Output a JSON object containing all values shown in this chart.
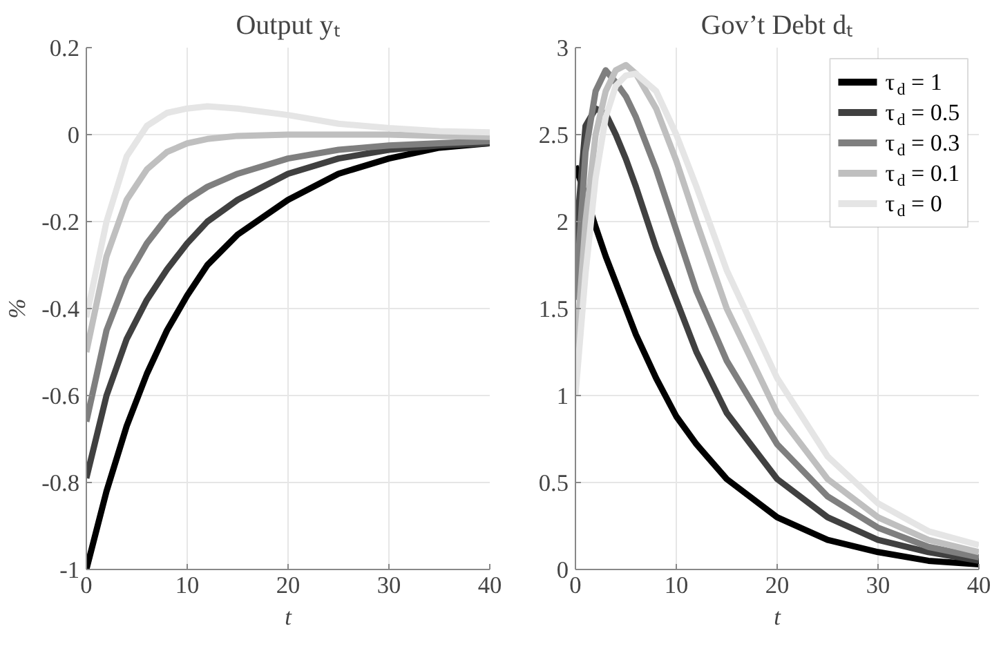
{
  "chart_data": [
    {
      "type": "line",
      "title": "Output yₜ",
      "xlabel": "t",
      "ylabel": "%",
      "xlim": [
        0,
        40
      ],
      "xticks": [
        0,
        10,
        20,
        30,
        40
      ],
      "ylim": [
        -1,
        0.2
      ],
      "yticks": [
        -1,
        -0.8,
        -0.6,
        -0.4,
        -0.2,
        0,
        0.2
      ],
      "grid": true,
      "x": [
        0,
        2,
        4,
        6,
        8,
        10,
        12,
        15,
        20,
        25,
        30,
        35,
        40
      ],
      "series": [
        {
          "color": "#000000",
          "values": [
            -1,
            -0.82,
            -0.67,
            -0.55,
            -0.45,
            -0.37,
            -0.3,
            -0.23,
            -0.15,
            -0.09,
            -0.055,
            -0.03,
            -0.02
          ]
        },
        {
          "color": "#404040",
          "values": [
            -0.79,
            -0.6,
            -0.47,
            -0.38,
            -0.31,
            -0.25,
            -0.2,
            -0.15,
            -0.09,
            -0.055,
            -0.035,
            -0.025,
            -0.02
          ]
        },
        {
          "color": "#7f7f7f",
          "values": [
            -0.66,
            -0.45,
            -0.33,
            -0.25,
            -0.19,
            -0.15,
            -0.12,
            -0.09,
            -0.055,
            -0.035,
            -0.025,
            -0.02,
            -0.015
          ]
        },
        {
          "color": "#bfbfbf",
          "values": [
            -0.5,
            -0.28,
            -0.15,
            -0.08,
            -0.04,
            -0.02,
            -0.01,
            -0.003,
            0,
            0,
            0,
            -0.003,
            -0.005
          ]
        },
        {
          "color": "#e5e5e5",
          "values": [
            -0.42,
            -0.2,
            -0.05,
            0.02,
            0.05,
            0.06,
            0.065,
            0.06,
            0.045,
            0.025,
            0.015,
            0.008,
            0.005
          ]
        }
      ]
    },
    {
      "type": "line",
      "title": "Gov’t Debt dₜ",
      "xlabel": "t",
      "xlim": [
        0,
        40
      ],
      "xticks": [
        0,
        10,
        20,
        30,
        40
      ],
      "ylim": [
        0,
        3
      ],
      "yticks": [
        0,
        0.5,
        1,
        1.5,
        2,
        2.5,
        3
      ],
      "grid": true,
      "legend": "top right",
      "x": [
        0,
        1,
        2,
        3,
        4,
        5,
        6,
        8,
        10,
        12,
        15,
        20,
        25,
        30,
        35,
        40
      ],
      "series": [
        {
          "name": "τ$_{d}$ = 1",
          "color": "#000000",
          "values": [
            2.32,
            2.15,
            1.97,
            1.8,
            1.65,
            1.5,
            1.35,
            1.1,
            0.88,
            0.72,
            0.52,
            0.3,
            0.17,
            0.1,
            0.05,
            0.03
          ]
        },
        {
          "name": "τ$_{d}$ = 0.5",
          "color": "#404040",
          "values": [
            1.86,
            2.55,
            2.65,
            2.62,
            2.5,
            2.36,
            2.2,
            1.85,
            1.55,
            1.25,
            0.9,
            0.52,
            0.3,
            0.17,
            0.1,
            0.05
          ]
        },
        {
          "name": "τ$_{d}$ = 0.3",
          "color": "#7f7f7f",
          "values": [
            1.55,
            2.4,
            2.75,
            2.87,
            2.8,
            2.72,
            2.6,
            2.3,
            1.95,
            1.6,
            1.2,
            0.72,
            0.42,
            0.24,
            0.13,
            0.07
          ]
        },
        {
          "name": "τ$_{d}$ = 0.1",
          "color": "#bfbfbf",
          "values": [
            1.2,
            2.0,
            2.5,
            2.75,
            2.87,
            2.9,
            2.85,
            2.65,
            2.35,
            2.0,
            1.5,
            0.9,
            0.52,
            0.3,
            0.17,
            0.1
          ]
        },
        {
          "name": "τ$_{d}$ = 0",
          "color": "#e5e5e5",
          "values": [
            1.0,
            1.7,
            2.25,
            2.6,
            2.78,
            2.84,
            2.85,
            2.75,
            2.5,
            2.2,
            1.72,
            1.1,
            0.65,
            0.38,
            0.22,
            0.14
          ]
        }
      ]
    }
  ]
}
